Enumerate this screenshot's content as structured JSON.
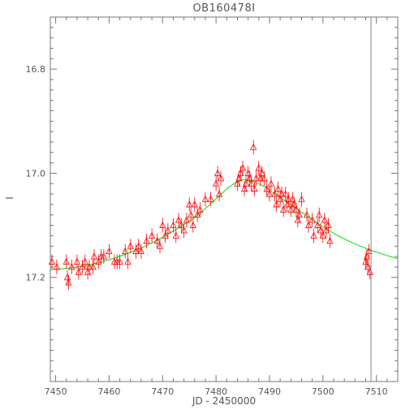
{
  "chart_data": {
    "type": "scatter",
    "title": "OB160478I",
    "xlabel": "JD - 2450000",
    "ylabel": "I",
    "xlim": [
      7449,
      7514
    ],
    "ylim": [
      17.4,
      16.7
    ],
    "y_inverted": true,
    "x_ticks": [
      "7450",
      "7460",
      "7470",
      "7480",
      "7490",
      "7500",
      "7510"
    ],
    "y_ticks": [
      "16.8",
      "17.0",
      "17.2"
    ],
    "vertical_line_x": 7509,
    "colors": {
      "points": "#ff0000",
      "model": "#00e000",
      "frame": "#777777"
    },
    "series": [
      {
        "kind": "data-with-errorbars",
        "marker": "triangle-up-open",
        "points": [
          [
            7449.3,
            17.17
          ],
          [
            7450.2,
            17.18
          ],
          [
            7452.0,
            17.17
          ],
          [
            7452.2,
            17.2
          ],
          [
            7452.4,
            17.21
          ],
          [
            7453.0,
            17.18
          ],
          [
            7454.0,
            17.17
          ],
          [
            7454.3,
            17.19
          ],
          [
            7455.0,
            17.18
          ],
          [
            7455.5,
            17.17
          ],
          [
            7456.0,
            17.19
          ],
          [
            7456.3,
            17.18
          ],
          [
            7457.0,
            17.18
          ],
          [
            7457.2,
            17.16
          ],
          [
            7458.0,
            17.17
          ],
          [
            7458.5,
            17.16
          ],
          [
            7459.0,
            17.16
          ],
          [
            7460.0,
            17.15
          ],
          [
            7461.0,
            17.17
          ],
          [
            7461.5,
            17.17
          ],
          [
            7462.0,
            17.17
          ],
          [
            7463.0,
            17.15
          ],
          [
            7463.5,
            17.17
          ],
          [
            7464.0,
            17.14
          ],
          [
            7465.0,
            17.15
          ],
          [
            7465.5,
            17.14
          ],
          [
            7466.0,
            17.15
          ],
          [
            7467.0,
            17.13
          ],
          [
            7468.0,
            17.12
          ],
          [
            7469.0,
            17.13
          ],
          [
            7469.5,
            17.14
          ],
          [
            7470.0,
            17.1
          ],
          [
            7470.5,
            17.12
          ],
          [
            7471.0,
            17.11
          ],
          [
            7472.0,
            17.1
          ],
          [
            7472.5,
            17.12
          ],
          [
            7473.0,
            17.09
          ],
          [
            7473.5,
            17.1
          ],
          [
            7474.0,
            17.11
          ],
          [
            7474.5,
            17.09
          ],
          [
            7475.0,
            17.06
          ],
          [
            7475.3,
            17.08
          ],
          [
            7475.7,
            17.1
          ],
          [
            7476.0,
            17.06
          ],
          [
            7476.5,
            17.08
          ],
          [
            7477.0,
            17.07
          ],
          [
            7478.0,
            17.05
          ],
          [
            7479.0,
            17.05
          ],
          [
            7480.0,
            17.02
          ],
          [
            7480.3,
            17.0
          ],
          [
            7480.6,
            17.04
          ],
          [
            7480.9,
            17.01
          ],
          [
            7484.0,
            17.02
          ],
          [
            7484.3,
            17.01
          ],
          [
            7484.6,
            17.0
          ],
          [
            7485.0,
            16.99
          ],
          [
            7485.3,
            17.03
          ],
          [
            7485.6,
            17.02
          ],
          [
            7486.0,
            17.0
          ],
          [
            7486.3,
            17.01
          ],
          [
            7486.6,
            17.02
          ],
          [
            7487.0,
            16.95
          ],
          [
            7487.2,
            17.03
          ],
          [
            7487.5,
            17.01
          ],
          [
            7488.0,
            16.99
          ],
          [
            7488.3,
            17.01
          ],
          [
            7488.6,
            17.0
          ],
          [
            7489.0,
            17.01
          ],
          [
            7489.5,
            17.03
          ],
          [
            7490.0,
            17.04
          ],
          [
            7490.3,
            17.02
          ],
          [
            7491.0,
            17.04
          ],
          [
            7491.3,
            17.06
          ],
          [
            7491.6,
            17.03
          ],
          [
            7492.0,
            17.05
          ],
          [
            7492.3,
            17.04
          ],
          [
            7492.6,
            17.07
          ],
          [
            7493.0,
            17.04
          ],
          [
            7493.3,
            17.06
          ],
          [
            7493.6,
            17.05
          ],
          [
            7494.0,
            17.07
          ],
          [
            7494.3,
            17.05
          ],
          [
            7494.6,
            17.06
          ],
          [
            7495.0,
            17.07
          ],
          [
            7495.3,
            17.09
          ],
          [
            7495.6,
            17.08
          ],
          [
            7496.0,
            17.05
          ],
          [
            7497.0,
            17.08
          ],
          [
            7497.3,
            17.1
          ],
          [
            7498.0,
            17.09
          ],
          [
            7498.3,
            17.12
          ],
          [
            7499.0,
            17.1
          ],
          [
            7499.3,
            17.08
          ],
          [
            7499.6,
            17.11
          ],
          [
            7500.0,
            17.12
          ],
          [
            7500.3,
            17.09
          ],
          [
            7500.6,
            17.11
          ],
          [
            7501.0,
            17.1
          ],
          [
            7501.3,
            17.13
          ],
          [
            7508.0,
            17.17
          ],
          [
            7508.2,
            17.16
          ],
          [
            7508.4,
            17.18
          ],
          [
            7508.6,
            17.15
          ],
          [
            7508.8,
            17.19
          ]
        ]
      },
      {
        "kind": "model-curve",
        "points": [
          [
            7449,
            17.185
          ],
          [
            7452,
            17.183
          ],
          [
            7455,
            17.179
          ],
          [
            7458,
            17.172
          ],
          [
            7461,
            17.163
          ],
          [
            7464,
            17.152
          ],
          [
            7467,
            17.139
          ],
          [
            7470,
            17.123
          ],
          [
            7473,
            17.105
          ],
          [
            7476,
            17.085
          ],
          [
            7479,
            17.059
          ],
          [
            7482,
            17.03
          ],
          [
            7484,
            17.015
          ],
          [
            7485.5,
            17.012
          ],
          [
            7487,
            17.015
          ],
          [
            7489,
            17.025
          ],
          [
            7491,
            17.04
          ],
          [
            7494,
            17.06
          ],
          [
            7497,
            17.082
          ],
          [
            7500,
            17.103
          ],
          [
            7503,
            17.121
          ],
          [
            7506,
            17.136
          ],
          [
            7509,
            17.148
          ],
          [
            7512,
            17.158
          ],
          [
            7514,
            17.164
          ]
        ]
      }
    ]
  }
}
